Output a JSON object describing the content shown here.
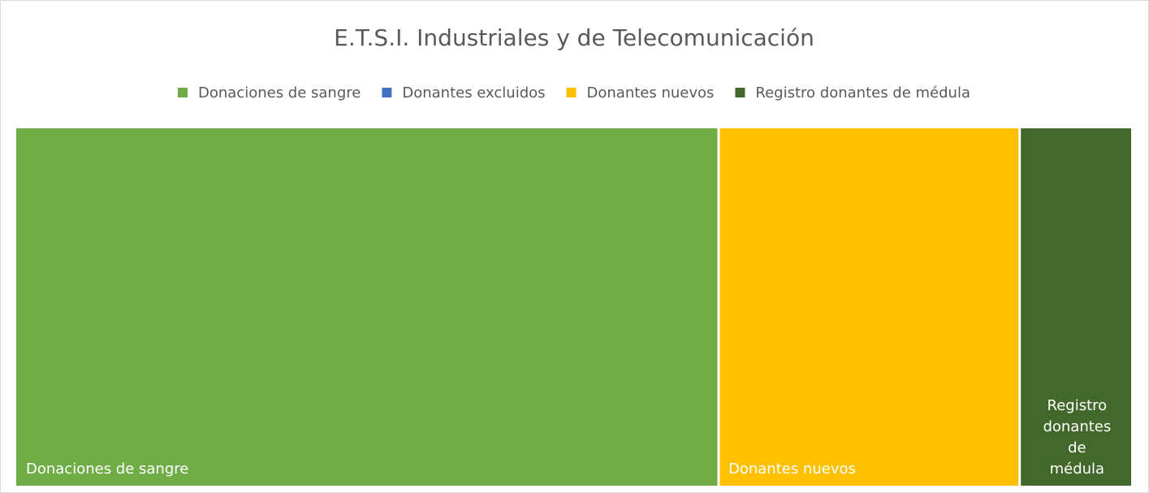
{
  "chart_data": {
    "type": "treemap",
    "title": "E.T.S.I. Industriales y de Telecomunicación",
    "categories": [
      "Donaciones de sangre",
      "Donantes excluidos",
      "Donantes nuevos",
      "Registro donantes de médula"
    ],
    "values": [
      63,
      0,
      27,
      10
    ],
    "colors": [
      "#70ad47",
      "#4472c4",
      "#ffc000",
      "#43682b"
    ],
    "legend": "top"
  }
}
